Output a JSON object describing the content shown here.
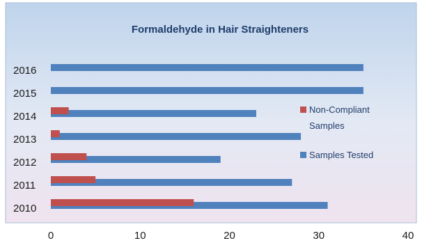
{
  "chart_data": {
    "type": "bar",
    "orientation": "horizontal",
    "title": "Formaldehyde in Hair Straighteners",
    "categories": [
      "2010",
      "2011",
      "2012",
      "2013",
      "2014",
      "2015",
      "2016"
    ],
    "series": [
      {
        "name": "Non-Compliant Samples",
        "values": [
          16,
          5,
          4,
          1,
          2,
          0,
          0
        ],
        "color": "#c0504d"
      },
      {
        "name": "Samples Tested",
        "values": [
          31,
          27,
          19,
          28,
          23,
          35,
          35
        ],
        "color": "#4f81bd"
      }
    ],
    "xticks": [
      "0",
      "10",
      "20",
      "30",
      "40"
    ],
    "xlim": [
      0,
      40
    ],
    "xlabel": "",
    "ylabel": "",
    "legend_position": "right",
    "grid": false
  }
}
